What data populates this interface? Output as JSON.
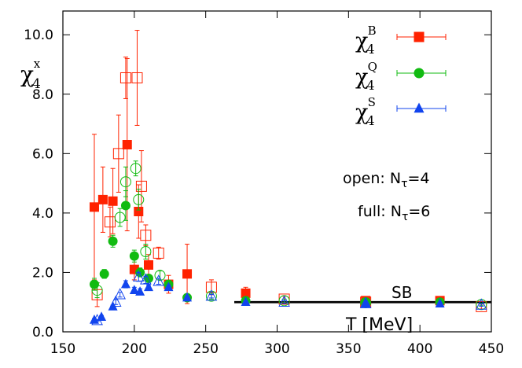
{
  "chart_data": {
    "type": "scatter",
    "title": "",
    "xlabel": "T [MeV]",
    "ylabel": "χ4x",
    "ylabel_base": "χ",
    "ylabel_sub": "4",
    "ylabel_sup": "x",
    "xlim": [
      150,
      450
    ],
    "ylim": [
      0,
      10.8
    ],
    "xticks": [
      150,
      200,
      250,
      300,
      350,
      400,
      450
    ],
    "xtick_labels": [
      "150",
      "200",
      "250",
      "300",
      "350",
      "400",
      "450"
    ],
    "yticks": [
      0,
      2,
      4,
      6,
      8,
      10
    ],
    "ytick_labels": [
      "0.0",
      "2.0",
      "4.0",
      "6.0",
      "8.0",
      "10.0"
    ],
    "grid": false,
    "legend_position": "top-right",
    "annotations": {
      "open_prefix": "open: N",
      "open_sub": "τ",
      "open_suffix": "=4",
      "full_prefix": "full: N",
      "full_sub": "τ",
      "full_suffix": "=6",
      "sb_label": "SB"
    },
    "sb_line": {
      "value": 1.0,
      "x_start": 270,
      "x_end": 450
    },
    "series": [
      {
        "name": "χ4B",
        "base": "χ",
        "sub": "4",
        "sup": "B",
        "color": "#ff2200",
        "marker": "square",
        "full": [
          {
            "x": 172,
            "y": 4.2,
            "err": 2.45
          },
          {
            "x": 178,
            "y": 4.45,
            "err": 1.1
          },
          {
            "x": 185,
            "y": 4.4,
            "err": 1.1
          },
          {
            "x": 195,
            "y": 6.3,
            "err": 2.9
          },
          {
            "x": 200,
            "y": 2.1,
            "err": 0.35
          },
          {
            "x": 203,
            "y": 4.05,
            "err": 0.9
          },
          {
            "x": 210,
            "y": 2.25,
            "err": 0.35
          },
          {
            "x": 224,
            "y": 1.6,
            "err": 0.3
          },
          {
            "x": 237,
            "y": 1.95,
            "err": 1.0
          },
          {
            "x": 278,
            "y": 1.3,
            "err": 0.2
          },
          {
            "x": 362,
            "y": 1.05,
            "err": 0.1
          },
          {
            "x": 414,
            "y": 1.05,
            "err": 0.05
          }
        ],
        "open": [
          {
            "x": 174,
            "y": 1.25,
            "err": 0.4
          },
          {
            "x": 183,
            "y": 3.7,
            "err": 0.5
          },
          {
            "x": 189,
            "y": 6.0,
            "err": 1.3
          },
          {
            "x": 194,
            "y": 8.55,
            "err": 0.7
          },
          {
            "x": 202,
            "y": 8.55,
            "err": 1.6
          },
          {
            "x": 205,
            "y": 4.9,
            "err": 1.2
          },
          {
            "x": 208,
            "y": 3.25,
            "err": 0.35
          },
          {
            "x": 217,
            "y": 2.65,
            "err": 0.2
          },
          {
            "x": 254,
            "y": 1.5,
            "err": 0.25
          },
          {
            "x": 305,
            "y": 1.1,
            "err": 0.1
          },
          {
            "x": 362,
            "y": 1.0,
            "err": 0.05
          },
          {
            "x": 443,
            "y": 0.85,
            "err": 0.08
          }
        ]
      },
      {
        "name": "χ4Q",
        "base": "χ",
        "sub": "4",
        "sup": "Q",
        "color": "#11bb11",
        "marker": "circle",
        "full": [
          {
            "x": 172,
            "y": 1.6,
            "err": 0.2
          },
          {
            "x": 179,
            "y": 1.95,
            "err": 0.15
          },
          {
            "x": 185,
            "y": 3.05,
            "err": 0.2
          },
          {
            "x": 194,
            "y": 4.25,
            "err": 0.5
          },
          {
            "x": 200,
            "y": 2.55,
            "err": 0.2
          },
          {
            "x": 204,
            "y": 2.0,
            "err": 0.15
          },
          {
            "x": 210,
            "y": 1.8,
            "err": 0.12
          },
          {
            "x": 224,
            "y": 1.6,
            "err": 0.1
          },
          {
            "x": 237,
            "y": 1.15,
            "err": 0.1
          },
          {
            "x": 278,
            "y": 1.05,
            "err": 0.05
          },
          {
            "x": 362,
            "y": 1.0,
            "err": 0.05
          },
          {
            "x": 414,
            "y": 1.0,
            "err": 0.04
          }
        ],
        "open": [
          {
            "x": 174,
            "y": 1.4,
            "err": 0.25
          },
          {
            "x": 190,
            "y": 3.85,
            "err": 0.3
          },
          {
            "x": 194,
            "y": 5.05,
            "err": 0.5
          },
          {
            "x": 201,
            "y": 5.5,
            "err": 0.25
          },
          {
            "x": 203,
            "y": 4.45,
            "err": 0.35
          },
          {
            "x": 208,
            "y": 2.7,
            "err": 0.25
          },
          {
            "x": 218,
            "y": 1.9,
            "err": 0.15
          },
          {
            "x": 254,
            "y": 1.2,
            "err": 0.1
          },
          {
            "x": 305,
            "y": 1.05,
            "err": 0.05
          },
          {
            "x": 362,
            "y": 0.98,
            "err": 0.04
          },
          {
            "x": 443,
            "y": 0.92,
            "err": 0.04
          }
        ]
      },
      {
        "name": "χ4S",
        "base": "χ",
        "sub": "4",
        "sup": "S",
        "color": "#1144ee",
        "marker": "triangle",
        "full": [
          {
            "x": 172,
            "y": 0.4,
            "err": 0.05
          },
          {
            "x": 177,
            "y": 0.5,
            "err": 0.05
          },
          {
            "x": 185,
            "y": 0.85,
            "err": 0.05
          },
          {
            "x": 194,
            "y": 1.6,
            "err": 0.12
          },
          {
            "x": 200,
            "y": 1.4,
            "err": 0.1
          },
          {
            "x": 204,
            "y": 1.35,
            "err": 0.1
          },
          {
            "x": 210,
            "y": 1.5,
            "err": 0.08
          },
          {
            "x": 224,
            "y": 1.5,
            "err": 0.06
          },
          {
            "x": 237,
            "y": 1.15,
            "err": 0.05
          },
          {
            "x": 278,
            "y": 1.0,
            "err": 0.04
          },
          {
            "x": 362,
            "y": 0.95,
            "err": 0.04
          },
          {
            "x": 414,
            "y": 0.95,
            "err": 0.03
          }
        ],
        "open": [
          {
            "x": 174,
            "y": 0.38,
            "err": 0.03
          },
          {
            "x": 187,
            "y": 1.0,
            "err": 0.08
          },
          {
            "x": 190,
            "y": 1.25,
            "err": 0.08
          },
          {
            "x": 203,
            "y": 1.85,
            "err": 0.15
          },
          {
            "x": 208,
            "y": 1.75,
            "err": 0.12
          },
          {
            "x": 217,
            "y": 1.7,
            "err": 0.1
          },
          {
            "x": 254,
            "y": 1.2,
            "err": 0.06
          },
          {
            "x": 305,
            "y": 1.0,
            "err": 0.05
          },
          {
            "x": 362,
            "y": 0.95,
            "err": 0.04
          },
          {
            "x": 443,
            "y": 0.9,
            "err": 0.04
          }
        ]
      }
    ]
  }
}
